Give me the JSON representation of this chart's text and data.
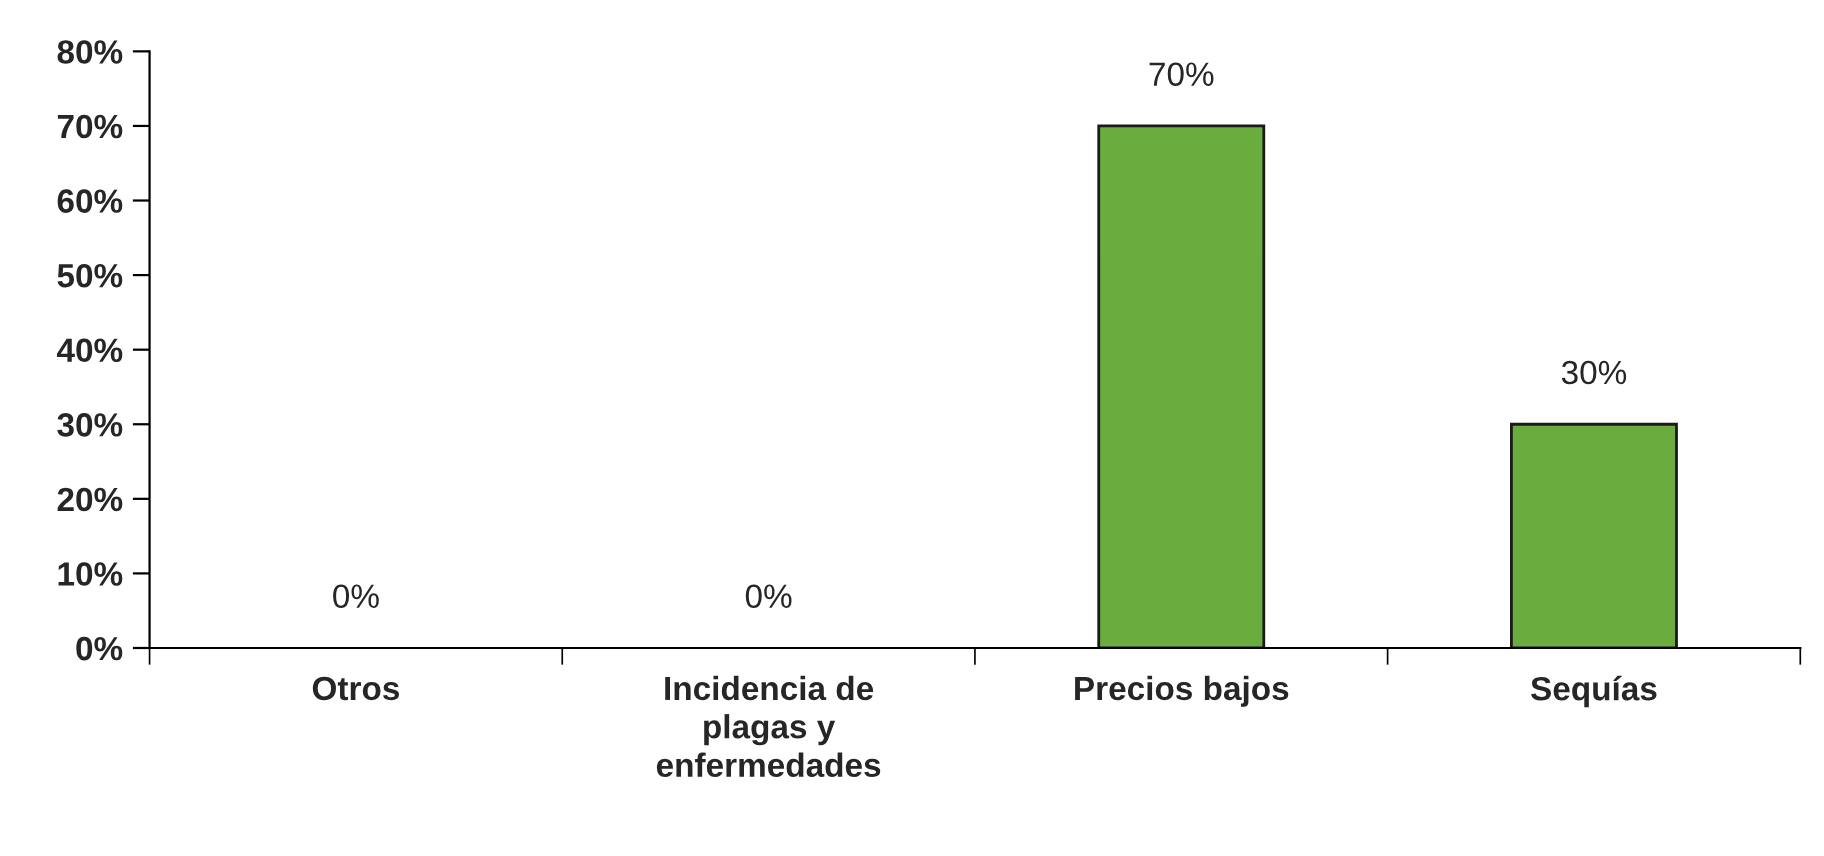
{
  "chart_data": {
    "type": "bar",
    "categories": [
      "Otros",
      "Incidencia de\nplagas y\nenfermedades",
      "Precios bajos",
      "Sequías"
    ],
    "values": [
      0,
      0,
      70,
      30
    ],
    "value_labels": [
      "0%",
      "0%",
      "70%",
      "30%"
    ],
    "color": "#6aac3e",
    "ylim": [
      0,
      80
    ],
    "yticks": [
      {
        "value": 0,
        "label": "0%"
      },
      {
        "value": 10,
        "label": "10%"
      },
      {
        "value": 20,
        "label": "20%"
      },
      {
        "value": 30,
        "label": "30%"
      },
      {
        "value": 40,
        "label": "40%"
      },
      {
        "value": 50,
        "label": "50%"
      },
      {
        "value": 60,
        "label": "60%"
      },
      {
        "value": 70,
        "label": "70%"
      },
      {
        "value": 80,
        "label": "80%"
      }
    ],
    "grid": false,
    "legend": false
  }
}
